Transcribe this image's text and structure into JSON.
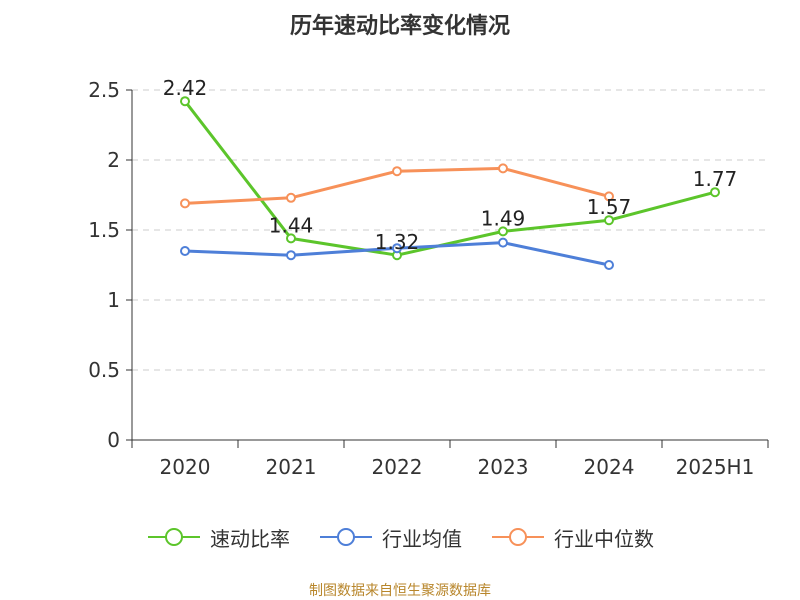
{
  "chart_data": {
    "type": "line",
    "title": "历年速动比率变化情况",
    "categories": [
      "2020",
      "2021",
      "2022",
      "2023",
      "2024",
      "2025H1"
    ],
    "ylim": [
      0,
      2.5
    ],
    "yticks": [
      0,
      0.5,
      1,
      1.5,
      2,
      2.5
    ],
    "grid": true,
    "legend_position": "bottom",
    "series": [
      {
        "name": "速动比率",
        "color": "#5cc52b",
        "values": [
          2.42,
          1.44,
          1.32,
          1.49,
          1.57,
          1.77
        ],
        "data_labels": [
          "2.42",
          "1.44",
          "1.32",
          "1.49",
          "1.57",
          "1.77"
        ]
      },
      {
        "name": "行业均值",
        "color": "#4e7fd8",
        "values": [
          1.35,
          1.32,
          1.37,
          1.41,
          1.25,
          null
        ]
      },
      {
        "name": "行业中位数",
        "color": "#f79159",
        "values": [
          1.69,
          1.73,
          1.92,
          1.94,
          1.74,
          null
        ]
      }
    ]
  },
  "source_note": "制图数据来自恒生聚源数据库"
}
